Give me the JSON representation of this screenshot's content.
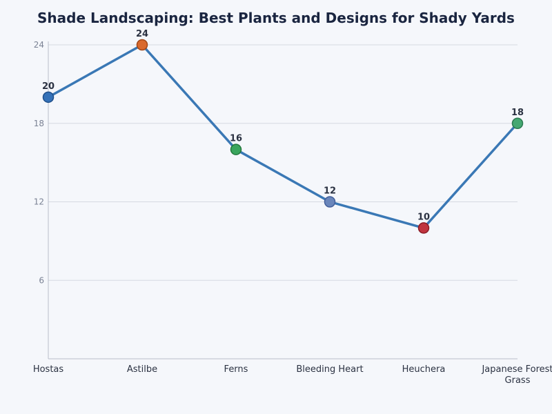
{
  "chart_data": {
    "type": "line",
    "title": "Shade Landscaping: Best Plants and Designs for Shady Yards",
    "xlabel": "",
    "ylabel": "",
    "categories": [
      "Hostas",
      "Astilbe",
      "Ferns",
      "Bleeding Heart",
      "Heuchera",
      "Japanese Forest Grass"
    ],
    "category_lines": [
      [
        "Hostas"
      ],
      [
        "Astilbe"
      ],
      [
        "Ferns"
      ],
      [
        "Bleeding Heart"
      ],
      [
        "Heuchera"
      ],
      [
        "Japanese Forest",
        "Grass"
      ]
    ],
    "values": [
      20,
      24,
      16,
      12,
      10,
      18
    ],
    "data_labels": [
      "20",
      "24",
      "16",
      "12",
      "10",
      "18"
    ],
    "ylim": [
      0,
      24
    ],
    "yticks": [
      6,
      12,
      18,
      24
    ],
    "grid": true,
    "line_color": "#3a78b5",
    "marker_colors": [
      "#3572b8",
      "#d9692d",
      "#3aa55d",
      "#6a86bb",
      "#c0343f",
      "#45a872"
    ],
    "marker_edge_colors": [
      "#1f4f8a",
      "#a04718",
      "#23773c",
      "#44609a",
      "#8a1c26",
      "#2b7a50"
    ]
  }
}
